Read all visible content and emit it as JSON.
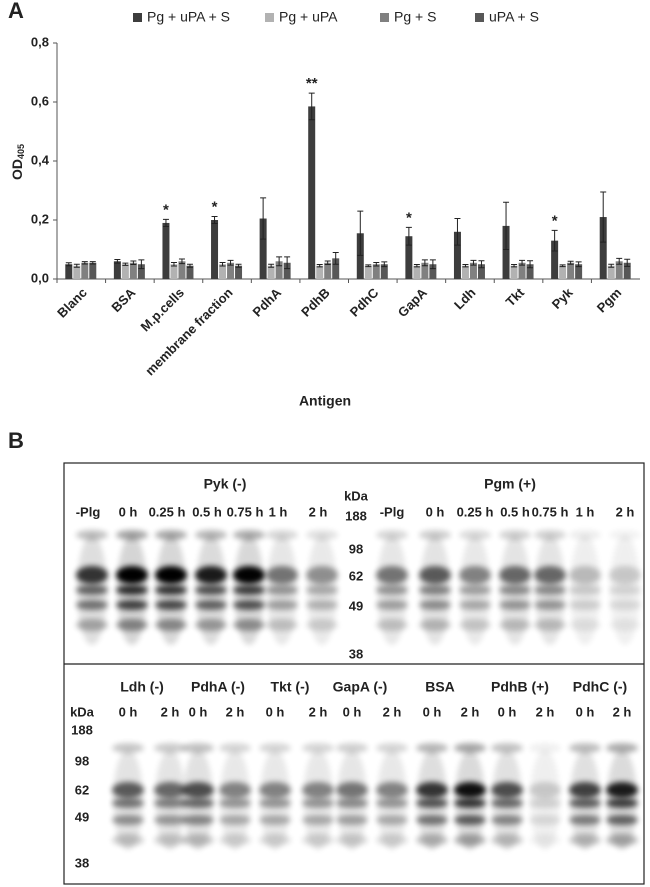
{
  "chart_data": {
    "type": "bar",
    "panel_label": "A",
    "y_label": "OD",
    "y_label_sub": "405",
    "x_label": "Antigen",
    "categories": [
      "Blanc",
      "BSA",
      "M.p.cells",
      "membrane fraction",
      "PdhA",
      "PdhB",
      "PdhC",
      "GapA",
      "Ldh",
      "Tkt",
      "Pyk",
      "Pgm"
    ],
    "series": [
      {
        "name": "Pg + uPA + S",
        "color": "#3d3d3d",
        "values": [
          0.05,
          0.06,
          0.19,
          0.2,
          0.205,
          0.585,
          0.155,
          0.145,
          0.16,
          0.18,
          0.13,
          0.21
        ],
        "errors": [
          0.005,
          0.006,
          0.012,
          0.012,
          0.07,
          0.045,
          0.075,
          0.03,
          0.045,
          0.08,
          0.035,
          0.085
        ]
      },
      {
        "name": "Pg + uPA",
        "color": "#b2b2b2",
        "values": [
          0.045,
          0.05,
          0.05,
          0.05,
          0.045,
          0.045,
          0.045,
          0.045,
          0.045,
          0.045,
          0.045,
          0.045
        ],
        "errors": [
          0.005,
          0.004,
          0.006,
          0.006,
          0.005,
          0.004,
          0.003,
          0.004,
          0.004,
          0.004,
          0.003,
          0.005
        ]
      },
      {
        "name": "Pg + S",
        "color": "#808080",
        "values": [
          0.055,
          0.055,
          0.06,
          0.055,
          0.06,
          0.055,
          0.05,
          0.055,
          0.055,
          0.055,
          0.055,
          0.06
        ],
        "errors": [
          0.004,
          0.006,
          0.008,
          0.008,
          0.015,
          0.006,
          0.006,
          0.01,
          0.008,
          0.008,
          0.005,
          0.01
        ]
      },
      {
        "name": "uPA + S",
        "color": "#575757",
        "values": [
          0.055,
          0.05,
          0.045,
          0.045,
          0.055,
          0.07,
          0.05,
          0.05,
          0.05,
          0.05,
          0.05,
          0.055
        ],
        "errors": [
          0.004,
          0.015,
          0.005,
          0.005,
          0.02,
          0.02,
          0.008,
          0.015,
          0.012,
          0.012,
          0.008,
          0.012
        ]
      }
    ],
    "annotations": [
      {
        "category": "M.p.cells",
        "text": "*"
      },
      {
        "category": "membrane fraction",
        "text": "*"
      },
      {
        "category": "PdhB",
        "text": "**"
      },
      {
        "category": "GapA",
        "text": "*"
      },
      {
        "category": "Pyk",
        "text": "*"
      }
    ],
    "ylim": [
      0,
      0.8
    ],
    "yticks": [
      {
        "value": 0,
        "label": "0,0"
      },
      {
        "value": 0.2,
        "label": "0,2"
      },
      {
        "value": 0.4,
        "label": "0,4"
      },
      {
        "value": 0.6,
        "label": "0,6"
      },
      {
        "value": 0.8,
        "label": "0,8"
      }
    ],
    "grid": false,
    "legend": "top"
  },
  "panel_b": {
    "label": "B",
    "top": [
      {
        "title": "Pyk (-)",
        "lanes": [
          "-Plg",
          "0 h",
          "0.25 h",
          "0.5 h",
          "0.75 h",
          "1 h",
          "2 h"
        ]
      },
      {
        "title": "Pgm (+)",
        "lanes": [
          "-Plg",
          "0 h",
          "0.25 h",
          "0.5 h",
          "0.75 h",
          "1 h",
          "2 h"
        ]
      }
    ],
    "top_markers": {
      "unit": "kDa",
      "labels": [
        "188",
        "98",
        "62",
        "49",
        "38"
      ]
    },
    "bottom": [
      {
        "title": "Ldh (-)",
        "lanes": [
          "0 h",
          "2 h"
        ]
      },
      {
        "title": "PdhA (-)",
        "lanes": [
          "0 h",
          "2 h"
        ]
      },
      {
        "title": "Tkt (-)",
        "lanes": [
          "0 h",
          "2 h"
        ]
      },
      {
        "title": "GapA (-)",
        "lanes": [
          "0 h",
          "2 h"
        ]
      },
      {
        "title": "BSA",
        "lanes": [
          "0 h",
          "2 h"
        ]
      },
      {
        "title": "PdhB (+)",
        "lanes": [
          "0 h",
          "2 h"
        ]
      },
      {
        "title": "PdhC (-)",
        "lanes": [
          "0 h",
          "2 h"
        ]
      }
    ],
    "bottom_markers": {
      "unit": "kDa",
      "labels": [
        "188",
        "98",
        "62",
        "49",
        "38"
      ]
    }
  }
}
